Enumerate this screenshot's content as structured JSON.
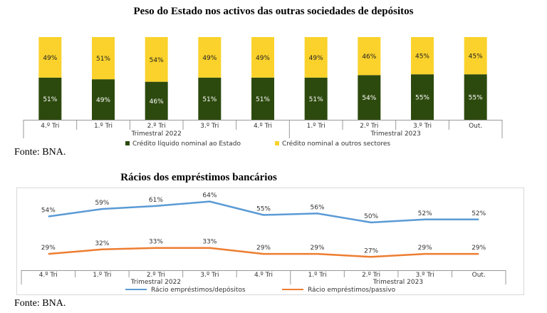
{
  "charts": [
    {
      "chart_data": {
        "type": "bar",
        "stacked": true,
        "title": "Peso do Estado nos activos das outras sociedades de depósitos",
        "categories": [
          "4.º Tri",
          "1.º Tri",
          "2.º Tri",
          "3.º Tri",
          "4.º Tri",
          "1.º Tri",
          "2.º Tri",
          "3.º Tri",
          "Out."
        ],
        "groups": [
          {
            "label": "Trimestral 2022",
            "span": [
              0,
              4
            ]
          },
          {
            "label": "Trimestral 2023",
            "span": [
              5,
              8
            ]
          }
        ],
        "series": [
          {
            "name": "Crédito líquido nominal ao Estado",
            "color": "#2d4a0e",
            "values": [
              51,
              49,
              46,
              51,
              51,
              51,
              54,
              55,
              55
            ],
            "labels": [
              "51%",
              "49%",
              "46%",
              "51%",
              "51%",
              "51%",
              "54%",
              "55%",
              "55%"
            ]
          },
          {
            "name": "Crédito nominal a outros sectores",
            "color": "#fad22b",
            "values": [
              49,
              51,
              54,
              49,
              49,
              49,
              46,
              45,
              45
            ],
            "labels": [
              "49%",
              "51%",
              "54%",
              "49%",
              "49%",
              "49%",
              "46%",
              "45%",
              "45%"
            ]
          }
        ],
        "ylim": [
          0,
          100
        ],
        "legend": "bottom"
      },
      "source": "Fonte: BNA."
    },
    {
      "chart_data": {
        "type": "line",
        "title": "Rácios dos empréstimos bancários",
        "categories": [
          "4.º Tri",
          "1.º Tri",
          "2.º Tri",
          "3.º Tri",
          "4.º Tri",
          "1.º Tri",
          "2.º Tri",
          "3.º Tri",
          "Out."
        ],
        "groups": [
          {
            "label": "Trimestral 2022",
            "span": [
              0,
              4
            ]
          },
          {
            "label": "Trimestral 2023",
            "span": [
              5,
              8
            ]
          }
        ],
        "series": [
          {
            "name": "Rácio empréstimos/depósitos",
            "color": "#5b9bd5",
            "values": [
              54,
              59,
              61,
              64,
              55,
              56,
              50,
              52,
              52
            ],
            "labels": [
              "54%",
              "59%",
              "61%",
              "64%",
              "55%",
              "56%",
              "50%",
              "52%",
              "52%"
            ]
          },
          {
            "name": "Rácio empréstimos/passivo",
            "color": "#ed7d31",
            "values": [
              29,
              32,
              33,
              33,
              29,
              29,
              27,
              29,
              29
            ],
            "labels": [
              "29%",
              "32%",
              "33%",
              "33%",
              "29%",
              "29%",
              "27%",
              "29%",
              "29%"
            ]
          }
        ],
        "ylim": [
          20,
          70
        ],
        "legend": "bottom"
      },
      "source": "Fonte: BNA."
    }
  ]
}
